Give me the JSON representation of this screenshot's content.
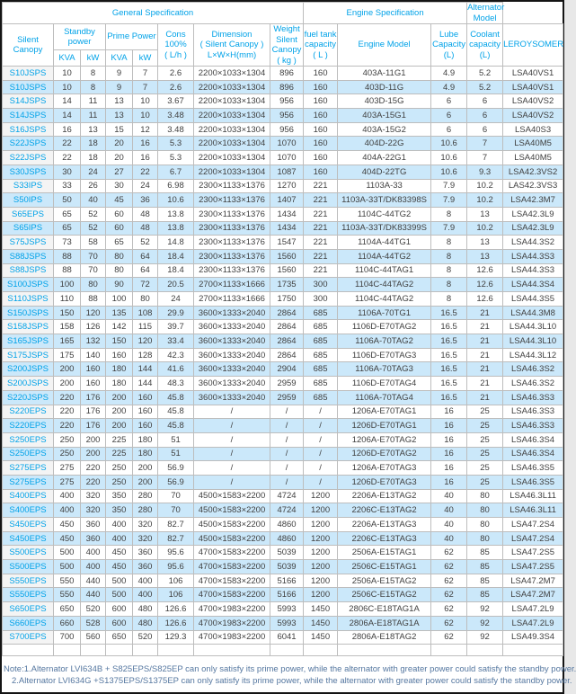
{
  "table": {
    "groups": {
      "general": "General Specification",
      "engine": "Engine Specification",
      "alternator": "Alternator Model"
    },
    "columns": {
      "silent_canopy": "Silent\nCanopy",
      "standby_power": "Standby\npower",
      "prime_power": "Prime Power",
      "standby_kva": "KVA",
      "standby_kw": "kW",
      "prime_kva": "KVA",
      "prime_kw": "kW",
      "cons": "Cons\n100%\n( L/h )",
      "dimension": "Dimension\n( Silent Canopy )\nL×W×H(mm)",
      "weight": "Weight\nSilent\nCanopy\n( kg )",
      "fuel_tank": "fuel tank\ncapacity\n( L )",
      "engine_model": "Engine Model",
      "lube_capacity": "Lube\nCapacity\n(L)",
      "coolant_capacity": "Coolant\ncapacity\n(L)",
      "alternator_brand": "LEROYSOMER"
    },
    "column_keys": [
      "model",
      "standby_kva",
      "standby_kw",
      "prime_kva",
      "prime_kw",
      "cons",
      "dimension",
      "weight",
      "fuel",
      "engine",
      "lube",
      "coolant",
      "alternator"
    ],
    "rows": [
      [
        "S10JSPS",
        "10",
        "8",
        "9",
        "7",
        "2.6",
        "2200×1033×1304",
        "896",
        "160",
        "403A-11G1",
        "4.9",
        "5.2",
        "LSA40VS1"
      ],
      [
        "S10JSPS",
        "10",
        "8",
        "9",
        "7",
        "2.6",
        "2200×1033×1304",
        "896",
        "160",
        "403D-11G",
        "4.9",
        "5.2",
        "LSA40VS1"
      ],
      [
        "S14JSPS",
        "14",
        "11",
        "13",
        "10",
        "3.67",
        "2200×1033×1304",
        "956",
        "160",
        "403D-15G",
        "6",
        "6",
        "LSA40VS2"
      ],
      [
        "S14JSPS",
        "14",
        "11",
        "13",
        "10",
        "3.48",
        "2200×1033×1304",
        "956",
        "160",
        "403A-15G1",
        "6",
        "6",
        "LSA40VS2"
      ],
      [
        "S16JSPS",
        "16",
        "13",
        "15",
        "12",
        "3.48",
        "2200×1033×1304",
        "956",
        "160",
        "403A-15G2",
        "6",
        "6",
        "LSA40S3"
      ],
      [
        "S22JSPS",
        "22",
        "18",
        "20",
        "16",
        "5.3",
        "2200×1033×1304",
        "1070",
        "160",
        "404D-22G",
        "10.6",
        "7",
        "LSA40M5"
      ],
      [
        "S22JSPS",
        "22",
        "18",
        "20",
        "16",
        "5.3",
        "2200×1033×1304",
        "1070",
        "160",
        "404A-22G1",
        "10.6",
        "7",
        "LSA40M5"
      ],
      [
        "S30JSPS",
        "30",
        "24",
        "27",
        "22",
        "6.7",
        "2200×1033×1304",
        "1087",
        "160",
        "404D-22TG",
        "10.6",
        "9.3",
        "LSA42.3VS2"
      ],
      [
        "S33IPS",
        "33",
        "26",
        "30",
        "24",
        "6.98",
        "2300×1133×1376",
        "1270",
        "221",
        "1103A-33",
        "7.9",
        "10.2",
        "LAS42.3VS3"
      ],
      [
        "S50IPS",
        "50",
        "40",
        "45",
        "36",
        "10.6",
        "2300×1133×1376",
        "1407",
        "221",
        "1103A-33T/DK83398S",
        "7.9",
        "10.2",
        "LSA42.3M7"
      ],
      [
        "S65EPS",
        "65",
        "52",
        "60",
        "48",
        "13.8",
        "2300×1133×1376",
        "1434",
        "221",
        "1104C-44TG2",
        "8",
        "13",
        "LSA42.3L9"
      ],
      [
        "S65IPS",
        "65",
        "52",
        "60",
        "48",
        "13.8",
        "2300×1133×1376",
        "1434",
        "221",
        "1103A-33T/DK83399S",
        "7.9",
        "10.2",
        "LSA42.3L9"
      ],
      [
        "S75JSPS",
        "73",
        "58",
        "65",
        "52",
        "14.8",
        "2300×1133×1376",
        "1547",
        "221",
        "1104A-44TG1",
        "8",
        "13",
        "LSA44.3S2"
      ],
      [
        "S88JSPS",
        "88",
        "70",
        "80",
        "64",
        "18.4",
        "2300×1133×1376",
        "1560",
        "221",
        "1104A-44TG2",
        "8",
        "13",
        "LSA44.3S3"
      ],
      [
        "S88JSPS",
        "88",
        "70",
        "80",
        "64",
        "18.4",
        "2300×1133×1376",
        "1560",
        "221",
        "1104C-44TAG1",
        "8",
        "12.6",
        "LSA44.3S3"
      ],
      [
        "S100JSPS",
        "100",
        "80",
        "90",
        "72",
        "20.5",
        "2700×1133×1666",
        "1735",
        "300",
        "1104C-44TAG2",
        "8",
        "12.6",
        "LSA44.3S4"
      ],
      [
        "S110JSPS",
        "110",
        "88",
        "100",
        "80",
        "24",
        "2700×1133×1666",
        "1750",
        "300",
        "1104C-44TAG2",
        "8",
        "12.6",
        "LSA44.3S5"
      ],
      [
        "S150JSPS",
        "150",
        "120",
        "135",
        "108",
        "29.9",
        "3600×1333×2040",
        "2864",
        "685",
        "1106A-70TG1",
        "16.5",
        "21",
        "LSA44.3M8"
      ],
      [
        "S158JSPS",
        "158",
        "126",
        "142",
        "115",
        "39.7",
        "3600×1333×2040",
        "2864",
        "685",
        "1106D-E70TAG2",
        "16.5",
        "21",
        "LSA44.3L10"
      ],
      [
        "S165JSPS",
        "165",
        "132",
        "150",
        "120",
        "33.4",
        "3600×1333×2040",
        "2864",
        "685",
        "1106A-70TAG2",
        "16.5",
        "21",
        "LSA44.3L10"
      ],
      [
        "S175JSPS",
        "175",
        "140",
        "160",
        "128",
        "42.3",
        "3600×1333×2040",
        "2864",
        "685",
        "1106D-E70TAG3",
        "16.5",
        "21",
        "LSA44.3L12"
      ],
      [
        "S200JSPS",
        "200",
        "160",
        "180",
        "144",
        "41.6",
        "3600×1333×2040",
        "2904",
        "685",
        "1106A-70TAG3",
        "16.5",
        "21",
        "LSA46.3S2"
      ],
      [
        "S200JSPS",
        "200",
        "160",
        "180",
        "144",
        "48.3",
        "3600×1333×2040",
        "2959",
        "685",
        "1106D-E70TAG4",
        "16.5",
        "21",
        "LSA46.3S2"
      ],
      [
        "S220JSPS",
        "220",
        "176",
        "200",
        "160",
        "45.8",
        "3600×1333×2040",
        "2959",
        "685",
        "1106A-70TAG4",
        "16.5",
        "21",
        "LSA46.3S3"
      ],
      [
        "S220EPS",
        "220",
        "176",
        "200",
        "160",
        "45.8",
        "/",
        "/",
        "/",
        "1206A-E70TAG1",
        "16",
        "25",
        "LSA46.3S3"
      ],
      [
        "S220EPS",
        "220",
        "176",
        "200",
        "160",
        "45.8",
        "/",
        "/",
        "/",
        "1206D-E70TAG1",
        "16",
        "25",
        "LSA46.3S3"
      ],
      [
        "S250EPS",
        "250",
        "200",
        "225",
        "180",
        "51",
        "/",
        "/",
        "/",
        "1206A-E70TAG2",
        "16",
        "25",
        "LSA46.3S4"
      ],
      [
        "S250EPS",
        "250",
        "200",
        "225",
        "180",
        "51",
        "/",
        "/",
        "/",
        "1206D-E70TAG2",
        "16",
        "25",
        "LSA46.3S4"
      ],
      [
        "S275EPS",
        "275",
        "220",
        "250",
        "200",
        "56.9",
        "/",
        "/",
        "/",
        "1206A-E70TAG3",
        "16",
        "25",
        "LSA46.3S5"
      ],
      [
        "S275EPS",
        "275",
        "220",
        "250",
        "200",
        "56.9",
        "/",
        "/",
        "/",
        "1206D-E70TAG3",
        "16",
        "25",
        "LSA46.3S5"
      ],
      [
        "S400EPS",
        "400",
        "320",
        "350",
        "280",
        "70",
        "4500×1583×2200",
        "4724",
        "1200",
        "2206A-E13TAG2",
        "40",
        "80",
        "LSA46.3L11"
      ],
      [
        "S400EPS",
        "400",
        "320",
        "350",
        "280",
        "70",
        "4500×1583×2200",
        "4724",
        "1200",
        "2206C-E13TAG2",
        "40",
        "80",
        "LSA46.3L11"
      ],
      [
        "S450EPS",
        "450",
        "360",
        "400",
        "320",
        "82.7",
        "4500×1583×2200",
        "4860",
        "1200",
        "2206A-E13TAG3",
        "40",
        "80",
        "LSA47.2S4"
      ],
      [
        "S450EPS",
        "450",
        "360",
        "400",
        "320",
        "82.7",
        "4500×1583×2200",
        "4860",
        "1200",
        "2206C-E13TAG3",
        "40",
        "80",
        "LSA47.2S4"
      ],
      [
        "S500EPS",
        "500",
        "400",
        "450",
        "360",
        "95.6",
        "4700×1583×2200",
        "5039",
        "1200",
        "2506A-E15TAG1",
        "62",
        "85",
        "LSA47.2S5"
      ],
      [
        "S500EPS",
        "500",
        "400",
        "450",
        "360",
        "95.6",
        "4700×1583×2200",
        "5039",
        "1200",
        "2506C-E15TAG1",
        "62",
        "85",
        "LSA47.2S5"
      ],
      [
        "S550EPS",
        "550",
        "440",
        "500",
        "400",
        "106",
        "4700×1583×2200",
        "5166",
        "1200",
        "2506A-E15TAG2",
        "62",
        "85",
        "LSA47.2M7"
      ],
      [
        "S550EPS",
        "550",
        "440",
        "500",
        "400",
        "106",
        "4700×1583×2200",
        "5166",
        "1200",
        "2506C-E15TAG2",
        "62",
        "85",
        "LSA47.2M7"
      ],
      [
        "S650EPS",
        "650",
        "520",
        "600",
        "480",
        "126.6",
        "4700×1983×2200",
        "5993",
        "1450",
        "2806C-E18TAG1A",
        "62",
        "92",
        "LSA47.2L9"
      ],
      [
        "S660EPS",
        "660",
        "528",
        "600",
        "480",
        "126.6",
        "4700×1983×2200",
        "5993",
        "1450",
        "2806A-E18TAG1A",
        "62",
        "92",
        "LSA47.2L9"
      ],
      [
        "S700EPS",
        "700",
        "560",
        "650",
        "520",
        "129.3",
        "4700×1983×2200",
        "6041",
        "1450",
        "2806A-E18TAG2",
        "62",
        "92",
        "LSA49.3S4"
      ]
    ]
  },
  "notes": {
    "line1": "Note:1.Alternator LVI634B + S825EPS/S825EP can only satisfy its prime power, while the alternator with greater power could satisfy the standby power.",
    "line2": "2.Alternator LVI634G +S1375EPS/S1375EP can only satisfy its prime power, while the alternator with greater power could satisfy the standby power."
  },
  "colors": {
    "accent": "#00a2e8",
    "stripe": "#cbe8fa",
    "note": "#5577a0"
  }
}
